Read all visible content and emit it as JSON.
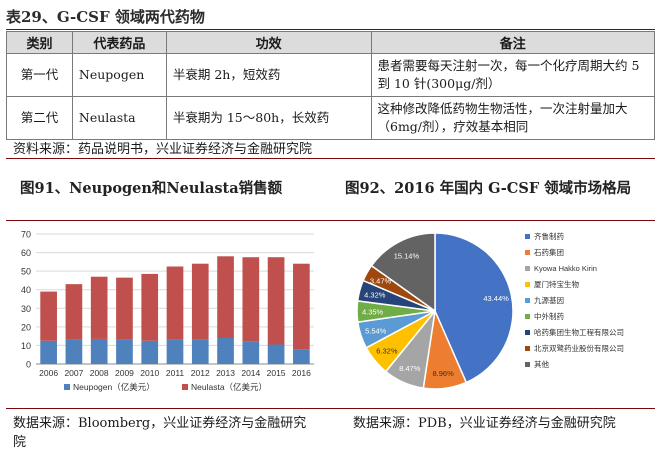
{
  "table": {
    "title": "表29、G-CSF 领域两代药物",
    "headers": [
      "类别",
      "代表药品",
      "功效",
      "备注"
    ],
    "rows": [
      {
        "gen": "第一代",
        "drug": "Neupogen",
        "effect": "半衰期 2h，短效药",
        "note": "患者需要每天注射一次，每一个化疗周期大约 5 到 10 针(300μg/剂）"
      },
      {
        "gen": "第二代",
        "drug": "Neulasta",
        "effect": "半衰期为 15～80h，长效药",
        "note": "这种修改降低药物生物活性，一次注射量加大（6mg/剂），疗效基本相同"
      }
    ],
    "source": "资料来源：药品说明书，兴业证券经济与金融研究院"
  },
  "fig91": {
    "title": "图91、Neupogen和Neulasta销售额",
    "source": "数据来源：Bloomberg，兴业证券经济与金融研究院"
  },
  "fig92": {
    "title": "图92、2016 年国内 G-CSF 领域市场格局",
    "source": "数据来源：PDB，兴业证券经济与金融研究院"
  },
  "chart_data": [
    {
      "type": "bar",
      "stacked": true,
      "categories": [
        "2006",
        "2007",
        "2008",
        "2009",
        "2010",
        "2011",
        "2012",
        "2013",
        "2014",
        "2015",
        "2016"
      ],
      "series": [
        {
          "name": "Neupogen（亿美元）",
          "color": "#4f81bd",
          "values": [
            12.5,
            13,
            13.5,
            13,
            12.5,
            13,
            13,
            14,
            12,
            10.5,
            8
          ]
        },
        {
          "name": "Neulasta（亿美元）",
          "color": "#c0504d",
          "values": [
            26.5,
            30,
            33.5,
            33.5,
            36,
            39.5,
            41,
            44,
            45.5,
            47,
            46
          ]
        }
      ],
      "ylim": [
        0,
        70
      ],
      "yticks": [
        0,
        10,
        20,
        30,
        40,
        50,
        60,
        70
      ],
      "grid": true,
      "legend": "bottom"
    },
    {
      "type": "pie",
      "slices": [
        {
          "label": "齐鲁制药",
          "value": 43.44,
          "display": "43.44%",
          "color": "#4472c4"
        },
        {
          "label": "石药集团",
          "value": 8.96,
          "display": "8.96%",
          "color": "#ed7d31"
        },
        {
          "label": "Kyowa Hakko Kirin",
          "value": 8.47,
          "display": "8.47%",
          "color": "#a5a5a5"
        },
        {
          "label": "厦门特宝生物",
          "value": 6.32,
          "display": "6.32%",
          "color": "#ffc000"
        },
        {
          "label": "九源基因",
          "value": 5.54,
          "display": "5.54%",
          "color": "#5b9bd5"
        },
        {
          "label": "中外制药",
          "value": 4.35,
          "display": "4.35%",
          "color": "#70ad47"
        },
        {
          "label": "哈药集团生物工程有限公司",
          "value": 4.32,
          "display": "4.32%",
          "color": "#264478"
        },
        {
          "label": "北京双鹭药业股份有限公司",
          "value": 3.47,
          "display": "3.47%",
          "color": "#9e480e"
        },
        {
          "label": "其他",
          "value": 15.14,
          "display": "15.14%",
          "color": "#636363"
        }
      ],
      "legend": "right"
    }
  ]
}
